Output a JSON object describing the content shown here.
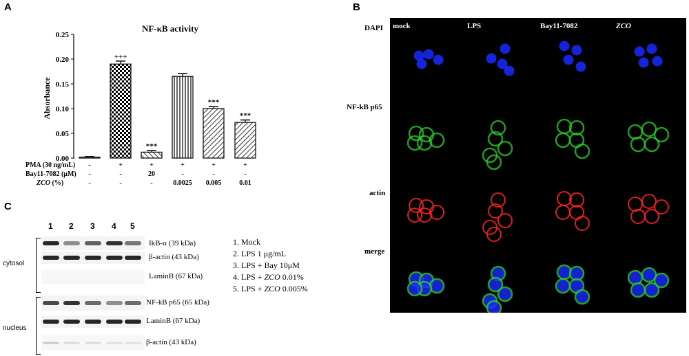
{
  "panels": {
    "a": "A",
    "b": "B",
    "c": "C"
  },
  "panel_a": {
    "sig": {
      "plus": "+++",
      "star": "***"
    },
    "conditions": {
      "pma": {
        "label": "PMA (30 ng/mL)",
        "values": [
          "-",
          "+",
          "+",
          "+",
          "+",
          "+"
        ]
      },
      "bay": {
        "label": "Bay11-7082 (μM)",
        "values": [
          "-",
          "-",
          "20",
          "-",
          "-",
          "-"
        ]
      },
      "zco": {
        "label_italic": "ZCO",
        "label_rest": " (%)",
        "values": [
          "-",
          "-",
          "-",
          "0.0025",
          "0.005",
          "0.01"
        ]
      }
    }
  },
  "chart_data": {
    "type": "bar",
    "title": "NF-κB activity",
    "ylabel": "Absorbance",
    "xlabel": "",
    "ylim": [
      0,
      0.25
    ],
    "yticks": [
      "0.00",
      "0.05",
      "0.10",
      "0.15",
      "0.20",
      "0.25"
    ],
    "values": [
      0.002,
      0.19,
      0.012,
      0.165,
      0.1,
      0.072
    ],
    "errors": [
      0.001,
      0.006,
      0.003,
      0.006,
      0.004,
      0.005
    ],
    "annotations": [
      "",
      "+++",
      "***",
      "",
      "***",
      "***"
    ],
    "patterns": [
      "none",
      "checker",
      "diag-rev",
      "vertical",
      "diag",
      "diag"
    ]
  },
  "panel_b": {
    "columns": [
      "mock",
      "LPS",
      "Bay11-7082",
      "ZCO"
    ],
    "rows": [
      "DAPI",
      "NF-kB p65",
      "actin",
      "merge"
    ],
    "colors": {
      "dapi": "#1a2aff",
      "p65": "#2fcf2f",
      "actin": "#ff2424"
    }
  },
  "panel_c": {
    "lanes": [
      "1",
      "2",
      "3",
      "4",
      "5"
    ],
    "cytosol_label": "cytosol",
    "nucleus_label": "nucleus",
    "cytosol_bands": [
      "IkB-α (39 kDa)",
      "β-actin (43 kDa)",
      "LaminB (67 kDa)"
    ],
    "nucleus_bands": [
      "NF-kB p65 (65 kDa)",
      "LaminB (67 kDa)",
      "β-actin (43 kDa)"
    ],
    "legend": [
      {
        "text": "1. Mock",
        "italic": "",
        "tail": ""
      },
      {
        "text": "2. LPS 1 μg/mL",
        "italic": "",
        "tail": ""
      },
      {
        "text": "3. LPS + Bay 10μM",
        "italic": "",
        "tail": ""
      },
      {
        "text": "4. LPS + ",
        "italic": "ZCO",
        "tail": " 0.01%"
      },
      {
        "text": "5. LPS + ",
        "italic": "ZCO",
        "tail": " 0.005%"
      }
    ]
  }
}
